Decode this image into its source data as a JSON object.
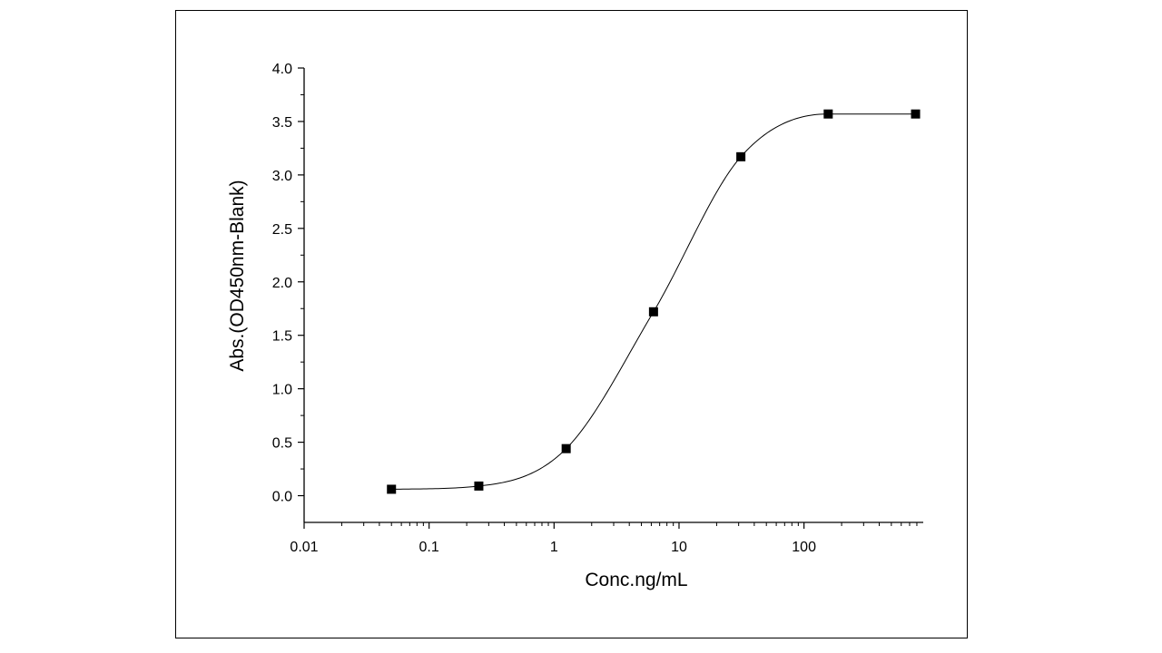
{
  "chart_data": {
    "type": "scatter",
    "title": "",
    "xlabel": "Conc.ng/mL",
    "ylabel": "Abs.(OD450nm-Blank)",
    "x_scale": "log",
    "xlim": [
      0.01,
      900
    ],
    "ylim": [
      -0.25,
      4.0
    ],
    "x_tick_labels": [
      "0.01",
      "0.1",
      "1",
      "10",
      "100"
    ],
    "y_tick_labels": [
      "0.0",
      "0.5",
      "1.0",
      "1.5",
      "2.0",
      "2.5",
      "3.0",
      "3.5",
      "4.0"
    ],
    "grid": false,
    "legend": "none",
    "series": [
      {
        "x": [
          0.05,
          0.25,
          1.25,
          6.25,
          31.25,
          156.25,
          781.25
        ],
        "y": [
          0.06,
          0.09,
          0.44,
          1.72,
          3.17,
          3.57,
          3.57
        ],
        "marker": "square",
        "fit": "4PL",
        "color": "#000000"
      }
    ]
  }
}
